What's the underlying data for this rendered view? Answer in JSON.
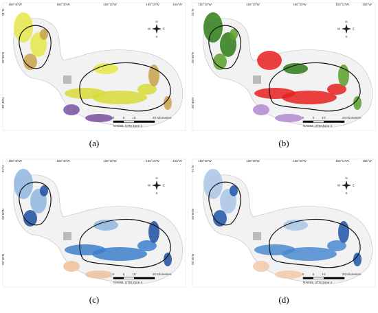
{
  "panels": [
    {
      "label": "(a)",
      "lon_ticks": [
        "156°40'W",
        "156°30'W",
        "156°20'W",
        "156°10'W",
        "156°W"
      ],
      "lat_ticks": [
        "21°N",
        "20°50'N",
        "20°40'N"
      ],
      "compass": [
        "N",
        "W",
        "E",
        "S"
      ],
      "scale_labels": [
        "0",
        "5",
        "10",
        "20 Kilometers"
      ],
      "projection": "NAD83, UTM Zone 4"
    },
    {
      "label": "(b)",
      "lon_ticks": [
        "156°40'W",
        "156°30'W",
        "156°20'W",
        "156°10'W",
        "156°W"
      ],
      "lat_ticks": [
        "21°N",
        "20°50'N",
        "20°40'N"
      ],
      "compass": [
        "N",
        "W",
        "E",
        "S"
      ],
      "scale_labels": [
        "0",
        "5",
        "10",
        "20 Kilometers"
      ],
      "projection": "NAD83, UTM Zone 4"
    },
    {
      "label": "(c)",
      "lon_ticks": [
        "156°40'W",
        "156°30'W",
        "156°20'W",
        "156°10'W",
        "156°W"
      ],
      "lat_ticks": [
        "21°N",
        "20°50'N",
        "20°40'N"
      ],
      "compass": [
        "N",
        "W",
        "E",
        "S"
      ],
      "scale_labels": [
        "0",
        "5",
        "10",
        "20 Kilometers"
      ],
      "projection": "NAD83, UTM Zone 4"
    },
    {
      "label": "(d)",
      "lon_ticks": [
        "156°40'W",
        "156°30'W",
        "156°20'W",
        "156°10'W",
        "156°W"
      ],
      "lat_ticks": [
        "21°N",
        "20°50'N",
        "20°40'N"
      ],
      "compass": [
        "N",
        "W",
        "E",
        "S"
      ],
      "scale_labels": [
        "0",
        "5",
        "10",
        "20 Kilometers"
      ],
      "projection": "NAD83, UTM Zone 4"
    }
  ]
}
